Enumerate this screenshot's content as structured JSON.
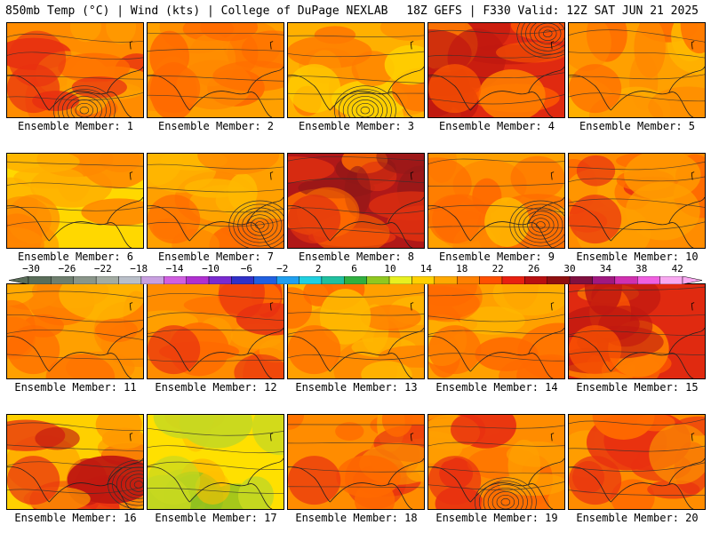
{
  "header": {
    "left": "850mb Temp (°C) | Wind (kts) | College of DuPage NEXLAB",
    "right": "18Z GEFS | F330 Valid: 12Z SAT JUN 21 2025"
  },
  "members": [
    {
      "label": "Ensemble Member: 1",
      "tone": "orange-red",
      "low": "south"
    },
    {
      "label": "Ensemble Member: 2",
      "tone": "orange",
      "low": "none"
    },
    {
      "label": "Ensemble Member: 3",
      "tone": "orange-yellow",
      "low": "south"
    },
    {
      "label": "Ensemble Member: 4",
      "tone": "red",
      "low": "north"
    },
    {
      "label": "Ensemble Member: 5",
      "tone": "orange",
      "low": "none"
    },
    {
      "label": "Ensemble Member: 6",
      "tone": "yellow-orange",
      "low": "none"
    },
    {
      "label": "Ensemble Member: 7",
      "tone": "orange",
      "low": "south-east"
    },
    {
      "label": "Ensemble Member: 8",
      "tone": "dark-red",
      "low": "none"
    },
    {
      "label": "Ensemble Member: 9",
      "tone": "orange",
      "low": "south-east"
    },
    {
      "label": "Ensemble Member: 10",
      "tone": "orange-red",
      "low": "none"
    },
    {
      "label": "Ensemble Member: 11",
      "tone": "orange",
      "low": "none"
    },
    {
      "label": "Ensemble Member: 12",
      "tone": "orange-red",
      "low": "none"
    },
    {
      "label": "Ensemble Member: 13",
      "tone": "orange",
      "low": "none"
    },
    {
      "label": "Ensemble Member: 14",
      "tone": "orange",
      "low": "none"
    },
    {
      "label": "Ensemble Member: 15",
      "tone": "red",
      "low": "none"
    },
    {
      "label": "Ensemble Member: 16",
      "tone": "yellow-red",
      "low": "east"
    },
    {
      "label": "Ensemble Member: 17",
      "tone": "yellow-green",
      "low": "none"
    },
    {
      "label": "Ensemble Member: 18",
      "tone": "orange-red",
      "low": "none"
    },
    {
      "label": "Ensemble Member: 19",
      "tone": "orange-red",
      "low": "south"
    },
    {
      "label": "Ensemble Member: 20",
      "tone": "orange-red",
      "low": "none"
    }
  ],
  "colorbar": {
    "ticks": [
      "−30",
      "−26",
      "−22",
      "−18",
      "−14",
      "−10",
      "−6",
      "−2",
      "2",
      "6",
      "10",
      "14",
      "18",
      "22",
      "26",
      "30",
      "34",
      "38",
      "42"
    ],
    "colors": [
      "#5a6e5a",
      "#6f7f6f",
      "#8a968a",
      "#a3aca3",
      "#b9bfc9",
      "#c8a0e0",
      "#d060e0",
      "#b030d0",
      "#7a2ad0",
      "#3030c8",
      "#2060e0",
      "#20a0f0",
      "#20d0e0",
      "#20c0a0",
      "#30b040",
      "#90c820",
      "#e8f020",
      "#ffd000",
      "#ffa800",
      "#ff8000",
      "#ff5000",
      "#e82010",
      "#b81010",
      "#901010",
      "#801040",
      "#a01880",
      "#d030b0",
      "#f060e0",
      "#f8a8f0"
    ]
  }
}
